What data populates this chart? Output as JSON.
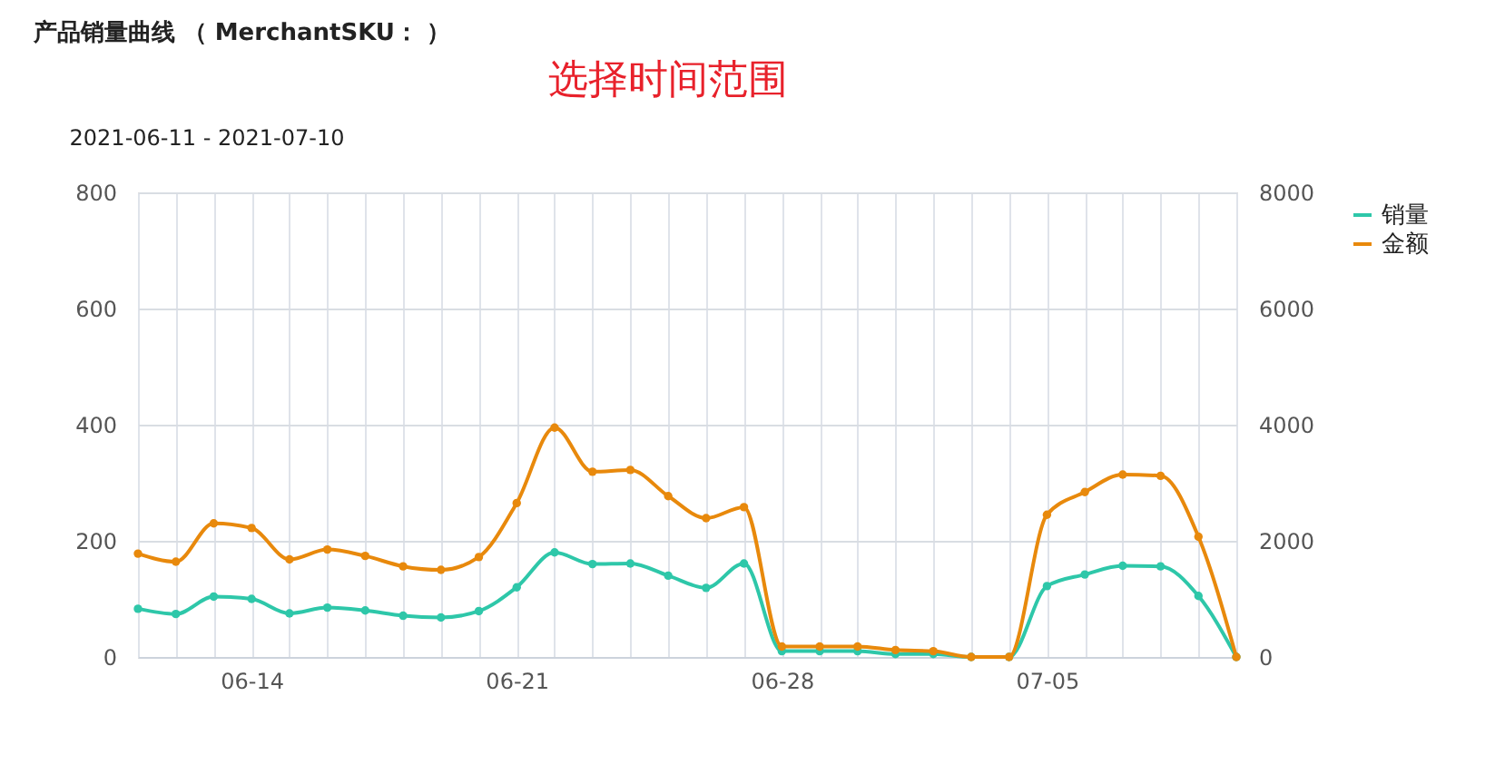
{
  "chart_data": {
    "type": "line",
    "title": "产品销量曲线 （ MerchantSKU： ）",
    "annotations": [
      "选择时间范围",
      "2021-06-11 - 2021-07-10"
    ],
    "x": [
      "2021-06-11",
      "2021-06-12",
      "2021-06-13",
      "2021-06-14",
      "2021-06-15",
      "2021-06-16",
      "2021-06-17",
      "2021-06-18",
      "2021-06-19",
      "2021-06-20",
      "2021-06-21",
      "2021-06-22",
      "2021-06-23",
      "2021-06-24",
      "2021-06-25",
      "2021-06-26",
      "2021-06-27",
      "2021-06-28",
      "2021-06-29",
      "2021-06-30",
      "2021-07-01",
      "2021-07-02",
      "2021-07-03",
      "2021-07-04",
      "2021-07-05",
      "2021-07-06",
      "2021-07-07",
      "2021-07-08",
      "2021-07-09",
      "2021-07-10"
    ],
    "xlim": [
      "2021-06-11",
      "2021-07-10"
    ],
    "xticks": [
      {
        "value": "2021-06-11",
        "label": null
      },
      {
        "value": "2021-06-12",
        "label": null
      },
      {
        "value": "2021-06-13",
        "label": null
      },
      {
        "value": "2021-06-14",
        "label": "06-14"
      },
      {
        "value": "2021-06-15",
        "label": null
      },
      {
        "value": "2021-06-16",
        "label": null
      },
      {
        "value": "2021-06-17",
        "label": null
      },
      {
        "value": "2021-06-18",
        "label": null
      },
      {
        "value": "2021-06-19",
        "label": null
      },
      {
        "value": "2021-06-20",
        "label": null
      },
      {
        "value": "2021-06-21",
        "label": "06-21"
      },
      {
        "value": "2021-06-22",
        "label": null
      },
      {
        "value": "2021-06-23",
        "label": null
      },
      {
        "value": "2021-06-24",
        "label": null
      },
      {
        "value": "2021-06-25",
        "label": null
      },
      {
        "value": "2021-06-26",
        "label": null
      },
      {
        "value": "2021-06-27",
        "label": null
      },
      {
        "value": "2021-06-28",
        "label": "06-28"
      },
      {
        "value": "2021-06-29",
        "label": null
      },
      {
        "value": "2021-06-30",
        "label": null
      },
      {
        "value": "2021-07-01",
        "label": null
      },
      {
        "value": "2021-07-02",
        "label": null
      },
      {
        "value": "2021-07-03",
        "label": null
      },
      {
        "value": "2021-07-04",
        "label": null
      },
      {
        "value": "2021-07-05",
        "label": "07-05"
      },
      {
        "value": "2021-07-06",
        "label": null
      },
      {
        "value": "2021-07-07",
        "label": null
      },
      {
        "value": "2021-07-08",
        "label": null
      },
      {
        "value": "2021-07-09",
        "label": null
      },
      {
        "value": "2021-07-10",
        "label": null
      }
    ],
    "ylim": [
      0,
      800
    ],
    "yticks": [
      0,
      200,
      400,
      600,
      800
    ],
    "y2lim": [
      0,
      8000
    ],
    "y2ticks": [
      0,
      2000,
      4000,
      6000,
      8000
    ],
    "grid": true,
    "legend": "top right",
    "marker": "circle",
    "line_style": "solid",
    "series": [
      {
        "name": "销量",
        "color": "#2ec7a9",
        "values": [
          83,
          74,
          104,
          100,
          75,
          85,
          80,
          71,
          68,
          79,
          120,
          180,
          160,
          161,
          140,
          119,
          161,
          10,
          10,
          10,
          5,
          5,
          0,
          0,
          122,
          142,
          157,
          156,
          105,
          0
        ]
      },
      {
        "name": "金额",
        "color": "#e8890c",
        "axis": "y2",
        "values": [
          1780,
          1640,
          2300,
          2220,
          1680,
          1850,
          1740,
          1560,
          1500,
          1720,
          2650,
          3950,
          3190,
          3220,
          2770,
          2390,
          2580,
          180,
          180,
          180,
          120,
          100,
          0,
          0,
          2450,
          2840,
          3140,
          3120,
          2070,
          0
        ]
      }
    ]
  }
}
